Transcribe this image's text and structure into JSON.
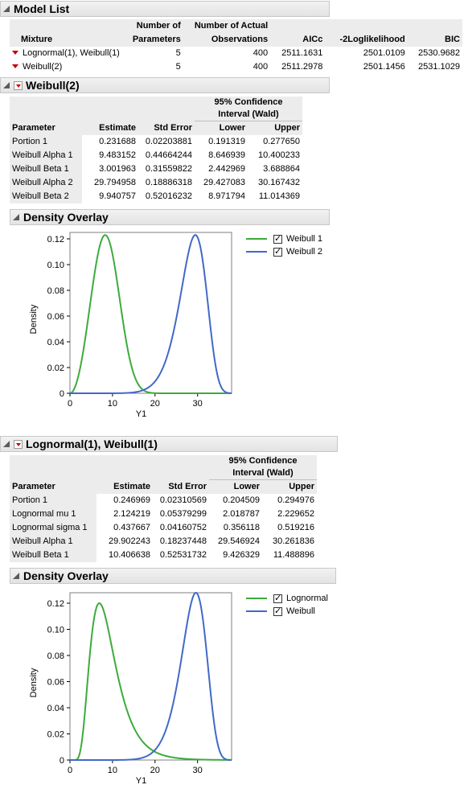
{
  "model_list": {
    "title": "Model List",
    "columns": [
      "Mixture",
      "Number of Parameters",
      "Number of Actual Observations",
      "AICc",
      "-2Loglikelihood",
      "BIC"
    ],
    "col_hdr_line1": [
      "",
      "Number of",
      "Number of Actual",
      "",
      "",
      ""
    ],
    "col_hdr_line2": [
      "Mixture",
      "Parameters",
      "Observations",
      "AICc",
      "-2Loglikelihood",
      "BIC"
    ],
    "rows": [
      {
        "mixture": "Lognormal(1), Weibull(1)",
        "params": "5",
        "obs": "400",
        "aicc": "2511.1631",
        "loglik": "2501.0109",
        "bic": "2530.9682"
      },
      {
        "mixture": "Weibull(2)",
        "params": "5",
        "obs": "400",
        "aicc": "2511.2978",
        "loglik": "2501.1456",
        "bic": "2531.1029"
      }
    ]
  },
  "weibull2": {
    "title": "Weibull(2)",
    "ci_header_line1": "95% Confidence",
    "ci_header_line2": "Interval (Wald)",
    "col_parameter": "Parameter",
    "col_estimate": "Estimate",
    "col_stderr": "Std Error",
    "col_lower": "Lower",
    "col_upper": "Upper",
    "rows": [
      {
        "param": "Portion 1",
        "est": "0.231688",
        "se": "0.02203881",
        "lower": "0.191319",
        "upper": "0.277650"
      },
      {
        "param": "Weibull Alpha 1",
        "est": "9.483152",
        "se": "0.44664244",
        "lower": "8.646939",
        "upper": "10.400233"
      },
      {
        "param": "Weibull Beta 1",
        "est": "3.001963",
        "se": "0.31559822",
        "lower": "2.442969",
        "upper": "3.688864"
      },
      {
        "param": "Weibull Alpha 2",
        "est": "29.794958",
        "se": "0.18886318",
        "lower": "29.427083",
        "upper": "30.167432"
      },
      {
        "param": "Weibull Beta 2",
        "est": "9.940757",
        "se": "0.52016232",
        "lower": "8.971794",
        "upper": "11.014369"
      }
    ],
    "overlay_title": "Density Overlay"
  },
  "lognormal_weibull": {
    "title": "Lognormal(1), Weibull(1)",
    "ci_header_line1": "95% Confidence",
    "ci_header_line2": "Interval (Wald)",
    "col_parameter": "Parameter",
    "col_estimate": "Estimate",
    "col_stderr": "Std Error",
    "col_lower": "Lower",
    "col_upper": "Upper",
    "rows": [
      {
        "param": "Portion 1",
        "est": "0.246969",
        "se": "0.02310569",
        "lower": "0.204509",
        "upper": "0.294976"
      },
      {
        "param": "Lognormal mu 1",
        "est": "2.124219",
        "se": "0.05379299",
        "lower": "2.018787",
        "upper": "2.229652"
      },
      {
        "param": "Lognormal sigma 1",
        "est": "0.437667",
        "se": "0.04160752",
        "lower": "0.356118",
        "upper": "0.519216"
      },
      {
        "param": "Weibull Alpha 1",
        "est": "29.902243",
        "se": "0.18237448",
        "lower": "29.546924",
        "upper": "30.261836"
      },
      {
        "param": "Weibull Beta 1",
        "est": "10.406638",
        "se": "0.52531732",
        "lower": "9.426329",
        "upper": "11.488896"
      }
    ],
    "overlay_title": "Density Overlay"
  },
  "chart_data": [
    {
      "type": "line",
      "xlabel": "Y1",
      "ylabel": "Density",
      "xlim": [
        0,
        38
      ],
      "ylim": [
        0,
        0.125
      ],
      "x_ticks": [
        0,
        10,
        20,
        30
      ],
      "y_ticks": [
        "0",
        "0.02",
        "0.04",
        "0.06",
        "0.08",
        "0.10",
        "0.12"
      ],
      "legend_position": "top-right",
      "series": [
        {
          "name": "Weibull 1",
          "color": "#3cab3c",
          "dist": "weibull",
          "alpha": 9.483152,
          "beta": 3.001963,
          "peak": 0.123
        },
        {
          "name": "Weibull 2",
          "color": "#4169c8",
          "dist": "weibull",
          "alpha": 29.794958,
          "beta": 9.940757,
          "peak": 0.123
        }
      ]
    },
    {
      "type": "line",
      "xlabel": "Y1",
      "ylabel": "Density",
      "xlim": [
        0,
        38
      ],
      "ylim": [
        0,
        0.128
      ],
      "x_ticks": [
        0,
        10,
        20,
        30
      ],
      "y_ticks": [
        "0",
        "0.02",
        "0.04",
        "0.06",
        "0.08",
        "0.10",
        "0.12"
      ],
      "legend_position": "top-right",
      "series": [
        {
          "name": "Lognormal",
          "color": "#3cab3c",
          "dist": "lognormal",
          "mu": 2.124219,
          "sigma": 0.437667,
          "peak": 0.12
        },
        {
          "name": "Weibull",
          "color": "#4169c8",
          "dist": "weibull",
          "alpha": 29.902243,
          "beta": 10.406638,
          "peak": 0.128
        }
      ]
    }
  ]
}
